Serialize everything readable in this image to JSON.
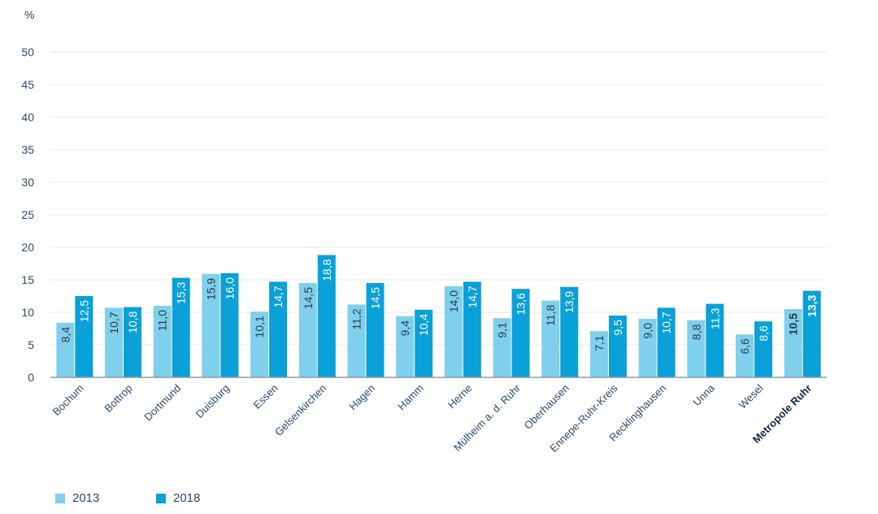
{
  "chart_data": {
    "type": "bar",
    "unit": "%",
    "categories": [
      "Bochum",
      "Bottrop",
      "Dortmund",
      "Duisburg",
      "Essen",
      "Gelsenkirchen",
      "Hagen",
      "Hamm",
      "Herne",
      "Mülheim a. d. Ruhr",
      "Oberhausen",
      "Ennepe-Ruhr-Kreis",
      "Recklinghausen",
      "Unna",
      "Wesel",
      "Metropole Ruhr"
    ],
    "highlight_category": "Metropole Ruhr",
    "series": [
      {
        "name": "2013",
        "color": "#7fd0ec",
        "values": [
          8.4,
          10.7,
          11.0,
          15.9,
          10.1,
          14.5,
          11.2,
          9.4,
          14.0,
          9.1,
          11.8,
          7.1,
          9.0,
          8.8,
          6.6,
          10.5
        ],
        "labels": [
          "8,4",
          "10,7",
          "11,0",
          "15,9",
          "10,1",
          "14,5",
          "11,2",
          "9,4",
          "14,0",
          "9,1",
          "11,8",
          "7,1",
          "9,0",
          "8,8",
          "6,6",
          "10,5"
        ]
      },
      {
        "name": "2018",
        "color": "#0aa0d8",
        "values": [
          12.5,
          10.8,
          15.3,
          16.0,
          14.7,
          18.8,
          14.5,
          10.4,
          14.7,
          13.6,
          13.9,
          9.5,
          10.7,
          11.3,
          8.6,
          13.3
        ],
        "labels": [
          "12,5",
          "10,8",
          "15,3",
          "16,0",
          "14,7",
          "18,8",
          "14,5",
          "10,4",
          "14,7",
          "13,6",
          "13,9",
          "9,5",
          "10,7",
          "11,3",
          "8,6",
          "13,3"
        ]
      }
    ],
    "ylim": [
      0,
      50
    ],
    "yticks": [
      0,
      5,
      10,
      15,
      20,
      25,
      30,
      35,
      40,
      45,
      50
    ],
    "legend_position": "bottom-left",
    "grid": true
  }
}
